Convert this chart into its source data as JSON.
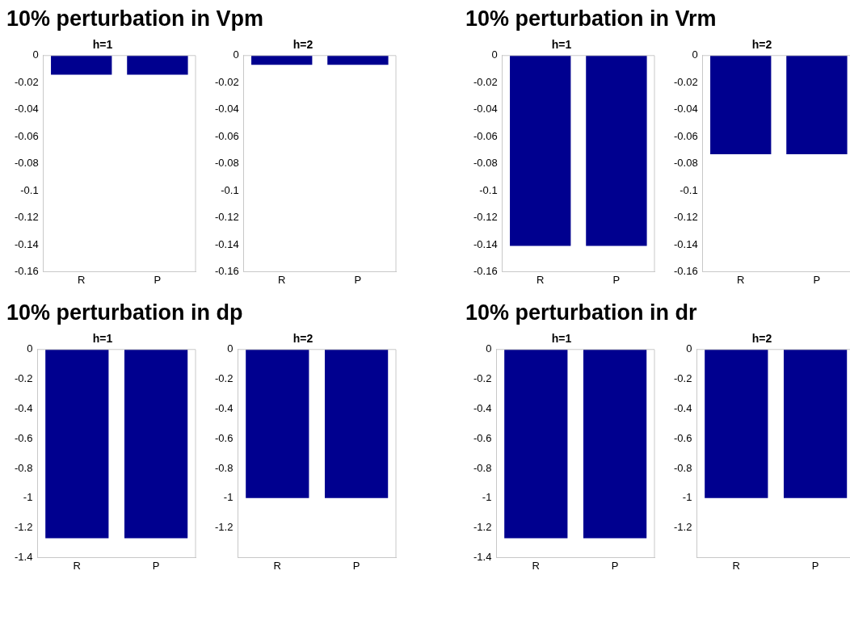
{
  "chart_data": [
    {
      "type": "bar",
      "title": "10% perturbation in Vpm",
      "subtitle": "h=1",
      "categories": [
        "R",
        "P"
      ],
      "values": [
        -0.0142,
        -0.0142
      ],
      "color": "#00008f",
      "ylim": [
        -0.16,
        0
      ],
      "yticks": [
        0,
        -0.02,
        -0.04,
        -0.06,
        -0.08,
        -0.1,
        -0.12,
        -0.14,
        -0.16
      ],
      "grid": false
    },
    {
      "type": "bar",
      "title": "h=2",
      "categories": [
        "R",
        "P"
      ],
      "values": [
        -0.0068,
        -0.0068
      ],
      "color": "#00008f",
      "ylim": [
        -0.16,
        0
      ],
      "yticks": [
        0,
        -0.02,
        -0.04,
        -0.06,
        -0.08,
        -0.1,
        -0.12,
        -0.14,
        -0.16
      ],
      "grid": false
    },
    {
      "type": "bar",
      "title": "10% perturbation in Vrm",
      "subtitle": "h=1",
      "categories": [
        "R",
        "P"
      ],
      "values": [
        -0.141,
        -0.141
      ],
      "color": "#00008f",
      "ylim": [
        -0.16,
        0
      ],
      "yticks": [
        0,
        -0.02,
        -0.04,
        -0.06,
        -0.08,
        -0.1,
        -0.12,
        -0.14,
        -0.16
      ],
      "grid": false
    },
    {
      "type": "bar",
      "title": "h=2",
      "categories": [
        "R",
        "P"
      ],
      "values": [
        -0.073,
        -0.073
      ],
      "color": "#00008f",
      "ylim": [
        -0.16,
        0
      ],
      "yticks": [
        0,
        -0.02,
        -0.04,
        -0.06,
        -0.08,
        -0.1,
        -0.12,
        -0.14,
        -0.16
      ],
      "grid": false
    },
    {
      "type": "bar",
      "title": "10% perturbation in dp",
      "subtitle": "h=1",
      "categories": [
        "R",
        "P"
      ],
      "values": [
        -1.27,
        -1.27
      ],
      "color": "#00008f",
      "ylim": [
        -1.4,
        0
      ],
      "yticks": [
        0,
        -0.2,
        -0.4,
        -0.6,
        -0.8,
        -1,
        -1.2,
        -1.4
      ],
      "grid": false
    },
    {
      "type": "bar",
      "title": "h=2",
      "categories": [
        "R",
        "P"
      ],
      "values": [
        -1.0,
        -1.0
      ],
      "color": "#00008f",
      "ylim": [
        -1.4,
        0
      ],
      "yticks": [
        0,
        -0.2,
        -0.4,
        -0.6,
        -0.8,
        -1,
        -1.2
      ],
      "grid": false
    },
    {
      "type": "bar",
      "title": "10% perturbation in dr",
      "subtitle": "h=1",
      "categories": [
        "R",
        "P"
      ],
      "values": [
        -1.27,
        -1.27
      ],
      "color": "#00008f",
      "ylim": [
        -1.4,
        0
      ],
      "yticks": [
        0,
        -0.2,
        -0.4,
        -0.6,
        -0.8,
        -1,
        -1.2,
        -1.4
      ],
      "grid": false
    },
    {
      "type": "bar",
      "title": "h=2",
      "categories": [
        "R",
        "P"
      ],
      "values": [
        -1.0,
        -1.0
      ],
      "color": "#00008f",
      "ylim": [
        -1.4,
        0
      ],
      "yticks": [
        0,
        -0.2,
        -0.4,
        -0.6,
        -0.8,
        -1,
        -1.2
      ],
      "grid": false
    }
  ]
}
